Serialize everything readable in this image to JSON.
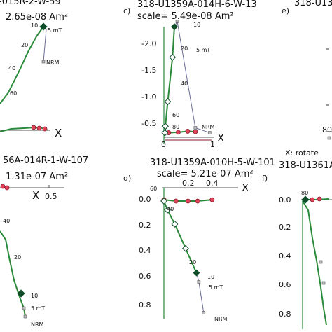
{
  "colors": {
    "vertical_projection": "#2a8a3a",
    "horizontal_projection": "#8a1a2a",
    "horizontal_fill": "#e0435a",
    "gray_path": "#6a6a98",
    "diamond_fill": "#0f4d2a"
  },
  "chart_data": [
    {
      "panel": "",
      "type": "scatter",
      "title_lines": [
        "-015R-2-W-59",
        "2.65e-08 Am²"
      ],
      "x_axis_label": "X",
      "ticks_x": [],
      "ticks_y": [],
      "step_labels": [
        "10",
        "5 mT",
        "20",
        "40",
        "60",
        "NRM"
      ]
    },
    {
      "panel": "c)",
      "type": "scatter",
      "title_lines": [
        "318-U1359A-014H-6-W-13",
        "scale=  5.49e-08 Am²"
      ],
      "x_axis_label": "X",
      "ticks_x": [
        "0",
        "1"
      ],
      "ticks_y": [
        "-2.0",
        "-1.5",
        "-1.0",
        "-0.5"
      ],
      "y_range": [
        -2.2,
        0.1
      ],
      "step_labels": [
        "10",
        "5 mT",
        "20",
        "40",
        "60",
        "80",
        "NRM"
      ],
      "vertical_projection": {
        "x": [
          0.02,
          0.03,
          0.08,
          0.18,
          0.22
        ],
        "y": [
          -0.02,
          -0.15,
          -0.65,
          -1.55,
          -2.17
        ]
      },
      "demag_path": {
        "x": [
          0.22,
          0.28,
          0.66,
          0.96
        ],
        "y": [
          -2.17,
          -2.28,
          -0.12,
          -0.02
        ]
      },
      "horizontal_projection": {
        "x": [
          0.02,
          0.1,
          0.3,
          0.5,
          0.66
        ],
        "y": [
          -0.02,
          -0.02,
          -0.03,
          -0.05,
          -0.04
        ]
      }
    },
    {
      "panel": "e)",
      "type": "scatter",
      "title_lines": [
        "318-U1361A-"
      ],
      "x_axis_label": "X: rotate",
      "ticks_x": [],
      "ticks_y": [
        "80"
      ],
      "step_labels": []
    },
    {
      "panel": "",
      "type": "scatter",
      "title_lines": [
        "56A-014R-1-W-107",
        "1.31e-07 Am²"
      ],
      "x_axis_label": "X",
      "ticks_x": [
        "0.5"
      ],
      "ticks_y": [],
      "step_labels": [
        "40",
        "20",
        "10",
        "5 mT",
        "NRM"
      ]
    },
    {
      "panel": "d)",
      "type": "scatter",
      "title_lines": [
        "318-U1359A-010H-5-W-101",
        "scale=  5.21e-07 Am²"
      ],
      "x_axis_label": "X",
      "ticks_x": [
        "0.2",
        "0.4"
      ],
      "ticks_y": [
        "0.0",
        "0.2",
        "0.4",
        "0.6",
        "0.8"
      ],
      "x_range": [
        0,
        0.5
      ],
      "y_range": [
        -0.05,
        0.9
      ],
      "step_labels": [
        "60",
        "40",
        "20",
        "10",
        "5 mT",
        "NRM"
      ],
      "vertical_projection": {
        "x": [
          0.0,
          0.03,
          0.09,
          0.18,
          0.27
        ],
        "y": [
          0.01,
          0.08,
          0.19,
          0.38,
          0.57
        ]
      },
      "demag_path": {
        "x": [
          0.27,
          0.29,
          0.33
        ],
        "y": [
          0.57,
          0.64,
          0.88
        ]
      },
      "horizontal_projection": {
        "x": [
          0.0,
          0.1,
          0.2,
          0.28,
          0.4
        ],
        "y": [
          0.0,
          0.01,
          0.01,
          0.01,
          0.0
        ]
      }
    },
    {
      "panel": "f)",
      "type": "scatter",
      "title_lines": [
        "318-U1361A-0"
      ],
      "x_axis_label": "",
      "ticks_x": [],
      "ticks_y": [
        "0.0",
        "0.2",
        "0.4",
        "0.6",
        "0.8"
      ],
      "step_labels": [
        "80"
      ]
    }
  ]
}
